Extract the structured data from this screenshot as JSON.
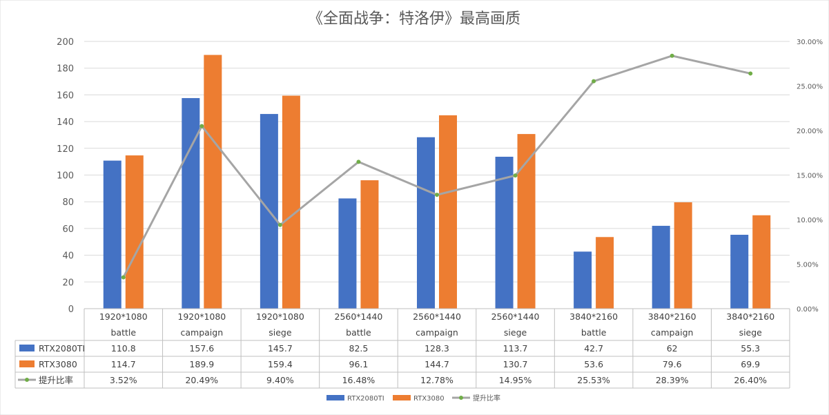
{
  "chart_data": {
    "type": "bar",
    "title": "《全面战争：特洛伊》最高画质",
    "categories": [
      [
        "1920*1080",
        "battle"
      ],
      [
        "1920*1080",
        "campaign"
      ],
      [
        "1920*1080",
        "siege"
      ],
      [
        "2560*1440",
        "battle"
      ],
      [
        "2560*1440",
        "campaign"
      ],
      [
        "2560*1440",
        "siege"
      ],
      [
        "3840*2160",
        "battle"
      ],
      [
        "3840*2160",
        "campaign"
      ],
      [
        "3840*2160",
        "siege"
      ]
    ],
    "series": [
      {
        "name": "RTX2080TI",
        "type": "bar",
        "axis": "left",
        "color": "#4472C4",
        "values": [
          110.8,
          157.6,
          145.7,
          82.5,
          128.3,
          113.7,
          42.7,
          62,
          55.3
        ],
        "labels": [
          "110.8",
          "157.6",
          "145.7",
          "82.5",
          "128.3",
          "113.7",
          "42.7",
          "62",
          "55.3"
        ]
      },
      {
        "name": "RTX3080",
        "type": "bar",
        "axis": "left",
        "color": "#ED7D31",
        "values": [
          114.7,
          189.9,
          159.4,
          96.1,
          144.7,
          130.7,
          53.6,
          79.6,
          69.9
        ],
        "labels": [
          "114.7",
          "189.9",
          "159.4",
          "96.1",
          "144.7",
          "130.7",
          "53.6",
          "79.6",
          "69.9"
        ]
      },
      {
        "name": "提升比率",
        "type": "line",
        "axis": "right",
        "color": "#A5A5A5",
        "marker_color": "#70AD47",
        "values": [
          3.52,
          20.49,
          9.4,
          16.48,
          12.78,
          14.95,
          25.53,
          28.39,
          26.4
        ],
        "labels": [
          "3.52%",
          "20.49%",
          "9.40%",
          "16.48%",
          "12.78%",
          "14.95%",
          "25.53%",
          "28.39%",
          "26.40%"
        ]
      }
    ],
    "y_left": {
      "range": [
        0,
        200
      ],
      "ticks": [
        "0",
        "20",
        "40",
        "60",
        "80",
        "100",
        "120",
        "140",
        "160",
        "180",
        "200"
      ]
    },
    "y_right": {
      "range": [
        0,
        30
      ],
      "ticks": [
        "0.00%",
        "5.00%",
        "10.00%",
        "15.00%",
        "20.00%",
        "25.00%",
        "30.00%"
      ]
    },
    "grid": true,
    "data_table": true,
    "legend_position": "bottom"
  }
}
